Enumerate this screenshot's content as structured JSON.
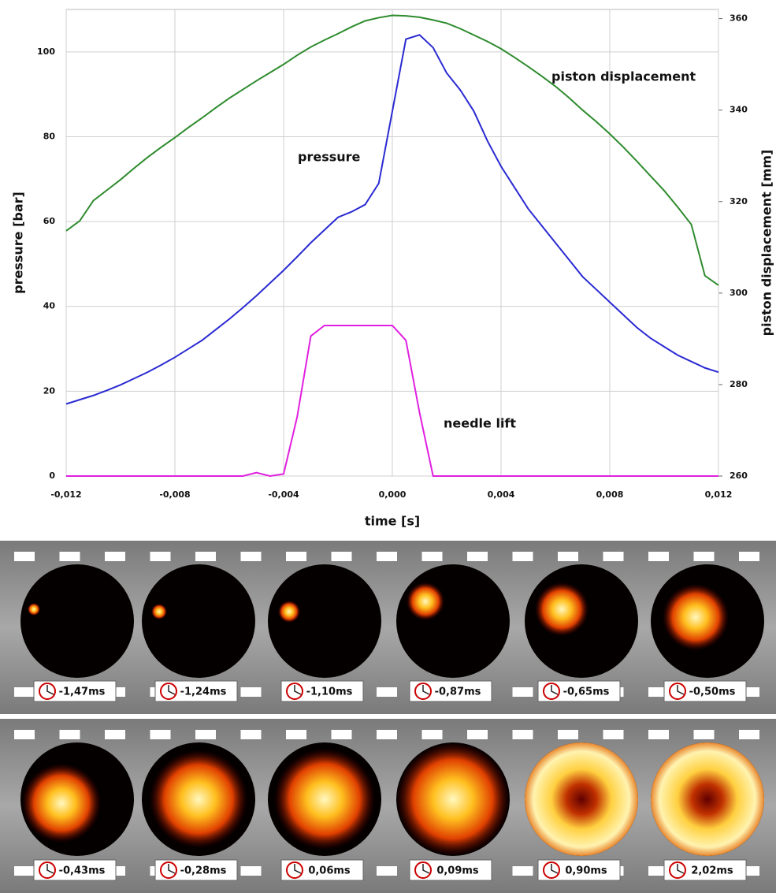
{
  "chart_data": {
    "type": "line",
    "x_label": "time [s]",
    "y_label": "pressure [bar]",
    "y2_label": "piston displacement [mm]",
    "x": [
      -0.012,
      -0.0115,
      -0.011,
      -0.0105,
      -0.01,
      -0.0095,
      -0.009,
      -0.0085,
      -0.008,
      -0.0075,
      -0.007,
      -0.0065,
      -0.006,
      -0.0055,
      -0.005,
      -0.0045,
      -0.004,
      -0.0035,
      -0.003,
      -0.0025,
      -0.002,
      -0.0015,
      -0.001,
      -0.0005,
      0,
      0.0005,
      0.001,
      0.0015,
      0.002,
      0.0025,
      0.003,
      0.0035,
      0.004,
      0.0045,
      0.005,
      0.0055,
      0.006,
      0.0065,
      0.007,
      0.0075,
      0.008,
      0.0085,
      0.009,
      0.0095,
      0.01,
      0.0105,
      0.011,
      0.0115,
      0.012
    ],
    "series": [
      {
        "name": "pressure",
        "color": "#2a2ad2",
        "axis": "y",
        "values": [
          17,
          18,
          19,
          20.2,
          21.5,
          23,
          24.5,
          26.2,
          28,
          30,
          32,
          34.5,
          37,
          39.7,
          42.5,
          45.5,
          48.5,
          51.7,
          55,
          58,
          61,
          62.3,
          64,
          69,
          86,
          103,
          104,
          101,
          95,
          91,
          86,
          79,
          73,
          68,
          63,
          59,
          55,
          51,
          47,
          44,
          41,
          38,
          35,
          32.5,
          30.5,
          28.5,
          27,
          25.5,
          24.5
        ]
      },
      {
        "name": "piston displacement",
        "color": "#2e8b2e",
        "axis": "y2",
        "values": [
          313.6,
          315.8,
          320.2,
          322.5,
          324.8,
          327.3,
          329.7,
          331.9,
          334,
          336.2,
          338.3,
          340.5,
          342.6,
          344.5,
          346.4,
          348.2,
          350,
          352,
          353.8,
          355.3,
          356.7,
          358.2,
          359.5,
          360.2,
          360.7,
          360.6,
          360.3,
          359.7,
          359,
          357.8,
          356.4,
          355,
          353.4,
          351.5,
          349.5,
          347.4,
          345.2,
          342.7,
          340,
          337.5,
          334.8,
          331.9,
          328.8,
          325.6,
          322.4,
          318.8,
          315,
          303.8,
          301.7
        ]
      },
      {
        "name": "needle lift",
        "color": "#e020e0",
        "axis": "y",
        "values": [
          0,
          0,
          0,
          0,
          0,
          0,
          0,
          0,
          0,
          0,
          0,
          0,
          0,
          0,
          0.8,
          0,
          0.5,
          14,
          33,
          35.5,
          35.5,
          35.5,
          35.5,
          35.5,
          35.5,
          32,
          15,
          0,
          0,
          0,
          0,
          0,
          0,
          0,
          0,
          0,
          0,
          0,
          0,
          0,
          0,
          0,
          0,
          0,
          0,
          0,
          0,
          0,
          0
        ]
      }
    ],
    "xlim": [
      -0.012,
      0.012
    ],
    "xticks": [
      {
        "value": -0.012,
        "label": "-0,012"
      },
      {
        "value": -0.008,
        "label": "-0,008"
      },
      {
        "value": -0.004,
        "label": "-0,004"
      },
      {
        "value": 0,
        "label": "0,000"
      },
      {
        "value": 0.004,
        "label": "0,004"
      },
      {
        "value": 0.008,
        "label": "0,008"
      },
      {
        "value": 0.012,
        "label": "0,012"
      }
    ],
    "ylim": [
      0,
      110
    ],
    "yticks": [
      0,
      20,
      40,
      60,
      80,
      100
    ],
    "y2lim": [
      260,
      362
    ],
    "y2ticks": [
      260,
      280,
      300,
      320,
      340,
      360
    ],
    "grid": true
  },
  "film_strips": [
    [
      "-1,47ms",
      "-1,24ms",
      "-1,10ms",
      "-0,87ms",
      "-0,65ms",
      "-0,50ms"
    ],
    [
      "-0,43ms",
      "-0,28ms",
      "0,06ms",
      "0,09ms",
      "0,90ms",
      "2,02ms"
    ]
  ]
}
